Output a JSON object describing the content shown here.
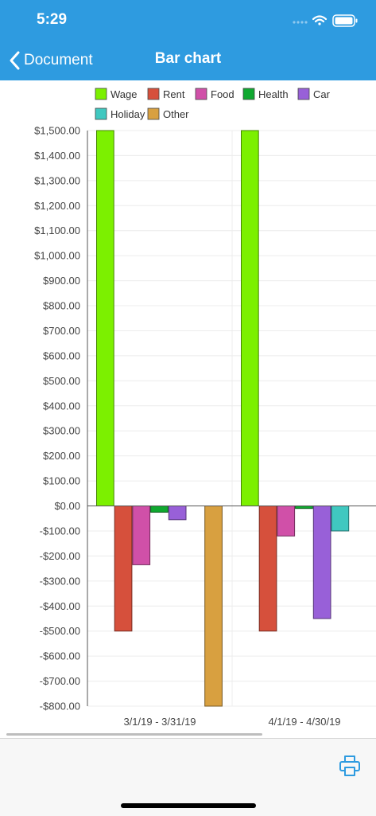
{
  "status": {
    "time": "5:29"
  },
  "nav": {
    "back_label": "Document",
    "title": "Bar chart"
  },
  "colors": {
    "header": "#2e9be0",
    "series": [
      "#7cf000",
      "#d6503c",
      "#d050a8",
      "#10a830",
      "#9860d8",
      "#40c8c0",
      "#d8a040"
    ]
  },
  "chart_data": {
    "type": "bar",
    "categories": [
      "3/1/19 - 3/31/19",
      "4/1/19 - 4/30/19"
    ],
    "series": [
      {
        "name": "Wage",
        "values": [
          1500,
          1500
        ]
      },
      {
        "name": "Rent",
        "values": [
          -500,
          -500
        ]
      },
      {
        "name": "Food",
        "values": [
          -235,
          -120
        ]
      },
      {
        "name": "Health",
        "values": [
          -25,
          -10
        ]
      },
      {
        "name": "Car",
        "values": [
          -55,
          -450
        ]
      },
      {
        "name": "Holiday",
        "values": [
          0,
          -100
        ]
      },
      {
        "name": "Other",
        "values": [
          -800,
          0
        ]
      }
    ],
    "ylim": [
      -800,
      1500
    ],
    "ytick_step": 100,
    "legend_position": "top",
    "grid": true,
    "yformat": "currency"
  },
  "toolbar": {
    "print_icon": "print-icon"
  }
}
